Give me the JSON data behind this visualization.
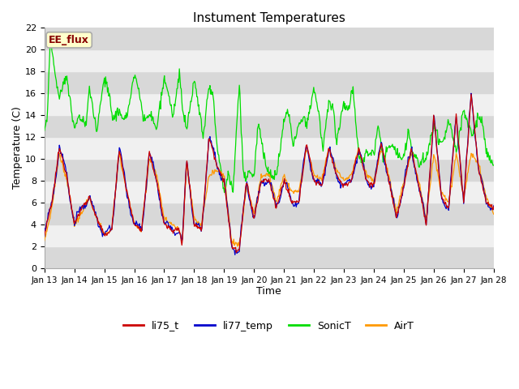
{
  "title": "Instument Temperatures",
  "xlabel": "Time",
  "ylabel": "Temperature (C)",
  "ylim": [
    0,
    22
  ],
  "yticks": [
    0,
    2,
    4,
    6,
    8,
    10,
    12,
    14,
    16,
    18,
    20,
    22
  ],
  "xtick_labels": [
    "Jan 13",
    "Jan 14",
    "Jan 15",
    "Jan 16",
    "Jan 17",
    "Jan 18",
    "Jan 19",
    "Jan 20",
    "Jan 21",
    "Jan 22",
    "Jan 23",
    "Jan 24",
    "Jan 25",
    "Jan 26",
    "Jan 27",
    "Jan 28"
  ],
  "annotation_text": "EE_flux",
  "annotation_bg": "#ffffcc",
  "annotation_border": "#aaaaaa",
  "annotation_text_color": "#880000",
  "colors": {
    "li75_t": "#cc0000",
    "li77_temp": "#0000cc",
    "SonicT": "#00dd00",
    "AirT": "#ff9900"
  },
  "bg_light": "#f0f0f0",
  "bg_dark": "#d8d8d8",
  "fig_bg": "#ffffff"
}
